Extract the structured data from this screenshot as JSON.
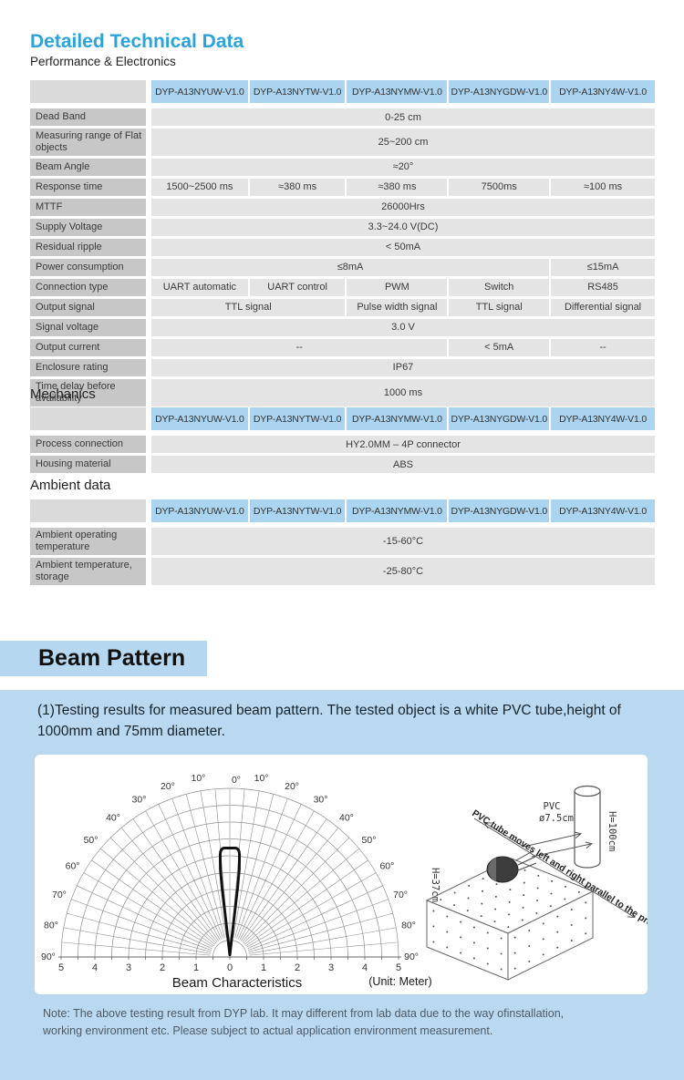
{
  "page": {
    "title": "Detailed Technical Data",
    "subtitle": "Performance & Electronics",
    "accent_color": "#2BA4DC",
    "header_cell_color": "#ABD4F0",
    "label_cell_color": "#C7C7C7",
    "value_cell_color": "#E4E4E4",
    "panel_color": "#BAD9F1"
  },
  "models": [
    "DYP-A13NYUW-V1.0",
    "DYP-A13NYTW-V1.0",
    "DYP-A13NYMW-V1.0",
    "DYP-A13NYGDW-V1.0",
    "DYP-A13NY4W-V1.0"
  ],
  "sections": {
    "performance": {
      "rows": [
        {
          "label": "Dead Band",
          "cells": [
            {
              "text": "0-25 cm",
              "span": 5
            }
          ]
        },
        {
          "label": "Measuring range of Flat objects",
          "cells": [
            {
              "text": "25~200 cm",
              "span": 5
            }
          ]
        },
        {
          "label": "Beam Angle",
          "cells": [
            {
              "text": "≈20°",
              "span": 5
            }
          ]
        },
        {
          "label": "Response time",
          "cells": [
            {
              "text": "1500~2500 ms",
              "span": 1
            },
            {
              "text": "≈380 ms",
              "span": 1
            },
            {
              "text": "≈380 ms",
              "span": 1
            },
            {
              "text": "7500ms",
              "span": 1
            },
            {
              "text": "≈100 ms",
              "span": 1
            }
          ]
        },
        {
          "label": "MTTF",
          "cells": [
            {
              "text": "26000Hrs",
              "span": 5
            }
          ]
        },
        {
          "label": "Supply Voltage",
          "cells": [
            {
              "text": "3.3~24.0  V(DC)",
              "span": 5
            }
          ]
        },
        {
          "label": "Residual ripple",
          "cells": [
            {
              "text": "< 50mA",
              "span": 5
            }
          ]
        },
        {
          "label": "Power consumption",
          "cells": [
            {
              "text": "≤8mA",
              "span": 4
            },
            {
              "text": "≤15mA",
              "span": 1
            }
          ]
        },
        {
          "label": "Connection type",
          "cells": [
            {
              "text": "UART automatic",
              "span": 1
            },
            {
              "text": "UART control",
              "span": 1
            },
            {
              "text": "PWM",
              "span": 1
            },
            {
              "text": "Switch",
              "span": 1
            },
            {
              "text": "RS485",
              "span": 1
            }
          ]
        },
        {
          "label": "Output signal",
          "cells": [
            {
              "text": "TTL signal",
              "span": 2
            },
            {
              "text": "Pulse width signal",
              "span": 1
            },
            {
              "text": "TTL signal",
              "span": 1
            },
            {
              "text": "Differential signal",
              "span": 1
            }
          ]
        },
        {
          "label": "Signal voltage",
          "cells": [
            {
              "text": "3.0 V",
              "span": 5
            }
          ]
        },
        {
          "label": "Output current",
          "cells": [
            {
              "text": "--",
              "span": 3
            },
            {
              "text": "< 5mA",
              "span": 1
            },
            {
              "text": "--",
              "span": 1
            }
          ]
        },
        {
          "label": "Enclosure rating",
          "cells": [
            {
              "text": "IP67",
              "span": 5
            }
          ]
        },
        {
          "label": "Time delay before availability",
          "cells": [
            {
              "text": "1000 ms",
              "span": 5
            }
          ]
        }
      ]
    },
    "mechanics": {
      "heading": "Mechanics",
      "rows": [
        {
          "label": "Process connection",
          "cells": [
            {
              "text": "HY2.0MM – 4P connector",
              "span": 5
            }
          ]
        },
        {
          "label": "Housing material",
          "cells": [
            {
              "text": "ABS",
              "span": 5
            }
          ]
        }
      ]
    },
    "ambient": {
      "heading": "Ambient data",
      "rows": [
        {
          "label": "Ambient operating temperature",
          "cells": [
            {
              "text": "-15-60°C",
              "span": 5
            }
          ]
        },
        {
          "label": "Ambient temperature, storage",
          "cells": [
            {
              "text": "-25-80°C",
              "span": 5
            }
          ]
        }
      ]
    }
  },
  "beam": {
    "heading": "Beam Pattern",
    "intro": "(1)Testing results for measured beam pattern. The tested object is a white PVC tube,height of 1000mm and 75mm diameter.",
    "note_line1": "Note: The above testing result from DYP lab.  It may different from lab data due to the way ofinstallation,",
    "note_line2": "working environment etc. Please subject to actual application environment measurement."
  },
  "chart_data": {
    "type": "polar-beam",
    "title": "Beam Characteristics",
    "unit_label": "(Unit: Meter)",
    "r_max_m": 5,
    "ring_step_m": 0.5,
    "ray_step_deg": 5,
    "angle_label_step_deg": 10,
    "angle_labels": [
      "0°",
      "10°",
      "20°",
      "30°",
      "40°",
      "50°",
      "60°",
      "70°",
      "80°",
      "90°"
    ],
    "x_tick_labels": [
      "5",
      "4",
      "3",
      "2",
      "1",
      "0",
      "1",
      "2",
      "3",
      "4",
      "5"
    ],
    "beam_lobe": {
      "max_range_m": 3.23,
      "half_width_m": 0.285,
      "profile": [
        [
          0,
          0.06
        ],
        [
          0.23,
          2.05
        ],
        [
          0.28,
          2.6
        ],
        [
          0.285,
          3.02
        ]
      ]
    }
  },
  "illustration": {
    "pvc_label": "PVC",
    "diameter_label": "ø7.5cm",
    "tube_height_label": "H=100cm",
    "box_height_label": "H=37cm",
    "caption": "PVC tube moves left and right parallel to the probe."
  }
}
